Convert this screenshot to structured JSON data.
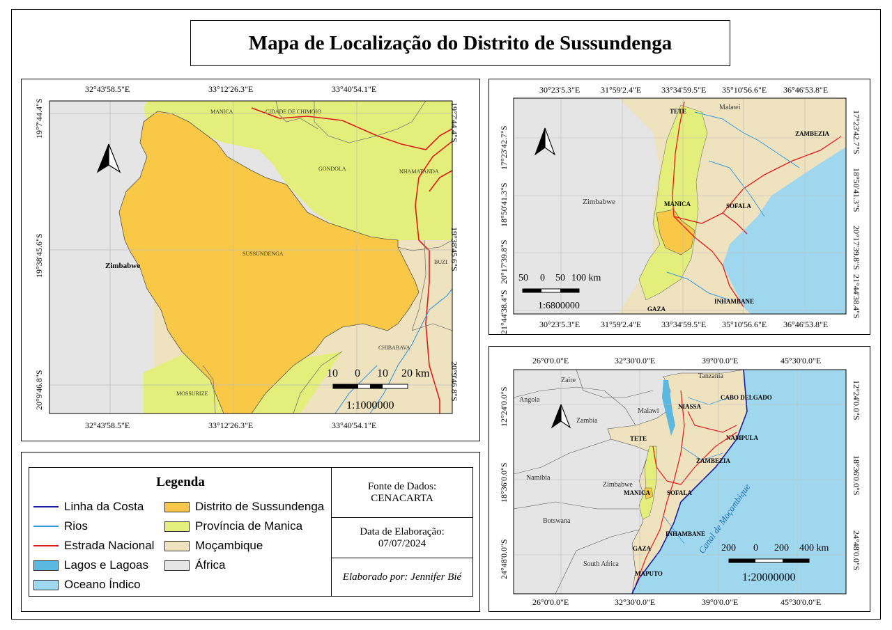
{
  "title": "Mapa de Localização do Distrito de Sussundenga",
  "main_map": {
    "top_coords": [
      "32°43'58.5\"E",
      "33°12'26.3\"E",
      "33°40'54.1\"E"
    ],
    "bottom_coords": [
      "32°43'58.5\"E",
      "33°12'26.3\"E",
      "33°40'54.1\"E"
    ],
    "left_coords": [
      "19°7'44.4\"S",
      "19°38'45.6\"S",
      "20°9'46.8\"S"
    ],
    "right_coords": [
      "19°7'44.4\"S",
      "19°38'45.6\"S",
      "20°9'46.8\"S"
    ],
    "labels": {
      "manica": "MANICA",
      "cidade_chimoio": "CIDADE DE CHIMOIO",
      "gondola": "GONDOLA",
      "nhamatanda": "NHAMATANDA",
      "sussundenga": "SUSSUNDENGA",
      "zimbabwe": "Zimbabwe",
      "buzi": "BUZI",
      "chibabava": "CHIBABAVA",
      "mossurize": "MOSSURIZE"
    },
    "scale_ticks": [
      "10",
      "0",
      "10",
      "20 km"
    ],
    "scale_ratio": "1:1000000"
  },
  "province_map": {
    "top_coords": [
      "30°23'5.3\"E",
      "31°59'2.4\"E",
      "33°34'59.5\"E",
      "35°10'56.6\"E",
      "36°46'53.8\"E"
    ],
    "bottom_coords": [
      "30°23'5.3\"E",
      "31°59'2.4\"E",
      "33°34'59.5\"E",
      "35°10'56.6\"E",
      "36°46'53.8\"E"
    ],
    "left_coords": [
      "17°23'42.7\"S",
      "18°50'41.3\"S",
      "20°17'39.8\"S",
      "21°44'38.4\"S"
    ],
    "right_coords": [
      "17°23'42.7\"S",
      "18°50'41.3\"S",
      "20°17'39.8\"S",
      "21°44'38.4\"S"
    ],
    "labels": {
      "tete": "TETE",
      "malawi": "Malawi",
      "zambezia": "ZAMBEZIA",
      "zimbabwe": "Zimbabwe",
      "manica": "MANICA",
      "sofala": "SOFALA",
      "gaza": "GAZA",
      "inhambane": "INHAMBANE"
    },
    "scale_ticks": [
      "50",
      "0",
      "50",
      "100 km"
    ],
    "scale_ratio": "1:6800000"
  },
  "country_map": {
    "top_coords": [
      "26°0'0.0\"E",
      "32°30'0.0\"E",
      "39°0'0.0\"E",
      "45°30'0.0\"E"
    ],
    "bottom_coords": [
      "26°0'0.0\"E",
      "32°30'0.0\"E",
      "39°0'0.0\"E",
      "45°30'0.0\"E"
    ],
    "left_coords": [
      "12°24'0.0\"S",
      "18°36'0.0\"S",
      "24°48'0.0\"S"
    ],
    "right_coords": [
      "12°24'0.0\"S",
      "18°36'0.0\"S",
      "24°48'0.0\"S"
    ],
    "labels": {
      "zaire": "Zaire",
      "tanzania": "Tanzania",
      "angola": "Angola",
      "zambia": "Zambia",
      "malawi": "Malawi",
      "niassa": "NIASSA",
      "cabo_delgado": "CABO DELGADO",
      "tete": "TETE",
      "nampula": "NAMPULA",
      "zambezia": "ZAMBEZIA",
      "namibia": "Namibia",
      "zimbabwe": "Zimbabwe",
      "manica": "MANICA",
      "sofala": "SOFALA",
      "botswana": "Botswana",
      "inhambane": "INHAMBANE",
      "gaza": "GAZA",
      "south_africa": "South Africa",
      "maputo": "MAPUTO",
      "canal": "Canal de Moçambique"
    },
    "scale_ticks": [
      "200",
      "0",
      "200",
      "400 km"
    ],
    "scale_ratio": "1:20000000"
  },
  "legend": {
    "title": "Legenda",
    "items": [
      {
        "label": "Linha da Costa",
        "kind": "line",
        "color": "#1a1aa8"
      },
      {
        "label": "Rios",
        "kind": "line",
        "color": "#3399dd"
      },
      {
        "label": "Estrada Nacional",
        "kind": "line",
        "color": "#e01818"
      },
      {
        "label": "Lagos e Lagoas",
        "kind": "box",
        "color": "#5bb8e0"
      },
      {
        "label": "Oceano Índico",
        "kind": "box",
        "color": "#9fd8ee"
      },
      {
        "label": "Distrito de Sussundenga",
        "kind": "box",
        "color": "#f9c846"
      },
      {
        "label": "Província de Manica",
        "kind": "box",
        "color": "#e3ef7a"
      },
      {
        "label": "Moçambique",
        "kind": "box",
        "color": "#efe2bf"
      },
      {
        "label": "África",
        "kind": "box",
        "color": "#e5e5e5"
      }
    ],
    "source_title": "Fonte de Dados:",
    "source_value": "CENACARTA",
    "date_title": "Data de Elaboração:",
    "date_value": "07/07/2024",
    "author": "Elaborado por: Jennifer Bié"
  },
  "colors": {
    "sussundenga": "#f9c846",
    "manica": "#e3ef7a",
    "mozambique": "#efe2bf",
    "africa": "#e5e5e5",
    "ocean": "#9fd8ee",
    "road": "#e01818",
    "river": "#3399dd",
    "coast": "#1a1aa8"
  }
}
